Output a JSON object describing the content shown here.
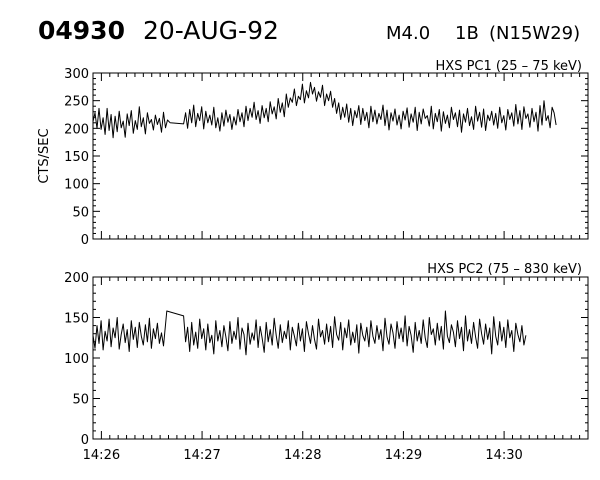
{
  "header": {
    "event_id": "04930",
    "date": "20-AUG-92",
    "flare_class": "M4.0",
    "importance": "1B",
    "location": "(N15W29)"
  },
  "chart_data": [
    {
      "type": "line",
      "title": "HXS PC1 (25 – 75 keV)",
      "ylabel": "CTS/SEC",
      "xlabel": "",
      "x_ticks": [
        "14:26",
        "14:27",
        "14:28",
        "14:29",
        "14:30"
      ],
      "xlim": [
        "14:25:55",
        "14:30:50"
      ],
      "ylim": [
        0,
        300
      ],
      "y_ticks": [
        0,
        50,
        100,
        150,
        200,
        250,
        300
      ],
      "grid": false,
      "series": [
        {
          "x_start": "14:25:55",
          "x_step_seconds": 1.2,
          "segments": [
            {
              "start": "14:25:55",
              "values": [
                212,
                228,
                200,
                236,
                198,
                219,
                189,
                236,
                196,
                225,
                183,
                222,
                194,
                231,
                201,
                213,
                184,
                226,
                205,
                232,
                191,
                214,
                198,
                239,
                203,
                219,
                190,
                228,
                209,
                216,
                197,
                224,
                207,
                218,
                193,
                229,
                201,
                215
              ]
            },
            {
              "start": "14:26:41",
              "values": [
                210
              ]
            },
            {
              "start": "14:26:49",
              "values": [
                208,
                228,
                200,
                234,
                210,
                242,
                203,
                227,
                214,
                239,
                199,
                231,
                210,
                224,
                206,
                238,
                201,
                219,
                195,
                228,
                204,
                233,
                211,
                225,
                198,
                221,
                206,
                234,
                212,
                228,
                203,
                240,
                214,
                236,
                220,
                247,
                216,
                232,
                209,
                241,
                219,
                236,
                212,
                248,
                226,
                239,
                217,
                254,
                229,
                246,
                221,
                262,
                238,
                255,
                247,
                271,
                241,
                258,
                252,
                280,
                246,
                268,
                255,
                283,
                262,
                274,
                249,
                266,
                256,
                278,
                241,
                262,
                250,
                267,
                238,
                254,
                227,
                246,
                216,
                238,
                220,
                244,
                211,
                236,
                205,
                232,
                219,
                241,
                207,
                236,
                214,
                229,
                201,
                240,
                212,
                233,
                208,
                227,
                216,
                242,
                205,
                233,
                197,
                228,
                213,
                235,
                206,
                224,
                199,
                231,
                215,
                237,
                202,
                226,
                211,
                238,
                196,
                229,
                208,
                235,
                218,
                223,
                204,
                240,
                199,
                227,
                212,
                234,
                195,
                230,
                209,
                224,
                201,
                238,
                216,
                228,
                203,
                233,
                193,
                226,
                211,
                236,
                205,
                221,
                198,
                240,
                213,
                229,
                202,
                235,
                196,
                224,
                214,
                231,
                206,
                227,
                200,
                238,
                210,
                223,
                197,
                234,
                216,
                228,
                204,
                243,
                208,
                232,
                198,
                239,
                218,
                226,
                202,
                236,
                212,
                229,
                195,
                241,
                206,
                250,
                214,
                223,
                201,
                238,
                228,
                206
              ]
            }
          ]
        }
      ]
    },
    {
      "type": "line",
      "title": "HXS PC2 (75 – 830 keV)",
      "ylabel": "",
      "xlabel": "",
      "x_ticks": [
        "14:26",
        "14:27",
        "14:28",
        "14:29",
        "14:30"
      ],
      "xlim": [
        "14:25:55",
        "14:30:50"
      ],
      "ylim": [
        0,
        200
      ],
      "y_ticks": [
        0,
        50,
        100,
        150,
        200
      ],
      "grid": false,
      "series": [
        {
          "x_start": "14:25:55",
          "x_step_seconds": 1.2,
          "segments": [
            {
              "start": "14:25:55",
              "values": [
                128,
                112,
                140,
                118,
                146,
                110,
                133,
                121,
                148,
                114,
                137,
                125,
                150,
                111,
                129,
                142,
                119,
                135,
                108,
                146,
                123,
                138,
                113,
                144,
                127,
                116,
                141,
                120,
                149,
                112,
                136,
                124,
                143,
                118,
                131,
                115
              ]
            },
            {
              "start": "14:26:39",
              "values": [
                158
              ]
            },
            {
              "start": "14:26:49",
              "values": [
                152,
                120,
                138,
                108,
                144,
                116,
                132,
                112,
                148,
                124,
                136,
                110,
                142,
                119,
                128,
                105,
                146,
                121,
                134,
                114,
                140,
                126,
                109,
                145,
                118,
                133,
                123,
                150,
                111,
                137,
                129,
                104,
                143,
                117,
                131,
                122,
                147,
                113,
                139,
                125,
                107,
                144,
                120,
                135,
                116,
                149,
                128,
                112,
                141,
                119,
                133,
                124,
                146,
                110,
                138,
                127,
                115,
                143,
                121,
                136,
                108,
                145,
                130,
                118,
                140,
                123,
                111,
                148,
                126,
                134,
                117,
                142,
                120,
                139,
                113,
                151,
                129,
                122,
                144,
                110,
                137,
                125,
                147,
                116,
                132,
                119,
                141,
                106,
                143,
                128,
                121,
                138,
                114,
                146,
                127,
                118,
                140,
                123,
                135,
                109,
                149,
                126,
                117,
                142,
                131,
                112,
                145,
                124,
                137,
                120,
                152,
                115,
                139,
                128,
                107,
                144,
                121,
                134,
                118,
                147,
                125,
                113,
                150,
                129,
                136,
                116,
                143,
                122,
                139,
                111,
                158,
                127,
                119,
                141,
                132,
                114,
                146,
                124,
                138,
                109,
                152,
                121,
                135,
                118,
                144,
                126,
                112,
                148,
                130,
                117,
                142,
                123,
                137,
                105,
                151,
                127,
                116,
                145,
                121,
                138,
                113,
                147,
                125,
                134,
                108,
                143,
                129,
                120,
                140,
                116,
                128
              ]
            }
          ]
        }
      ]
    }
  ]
}
